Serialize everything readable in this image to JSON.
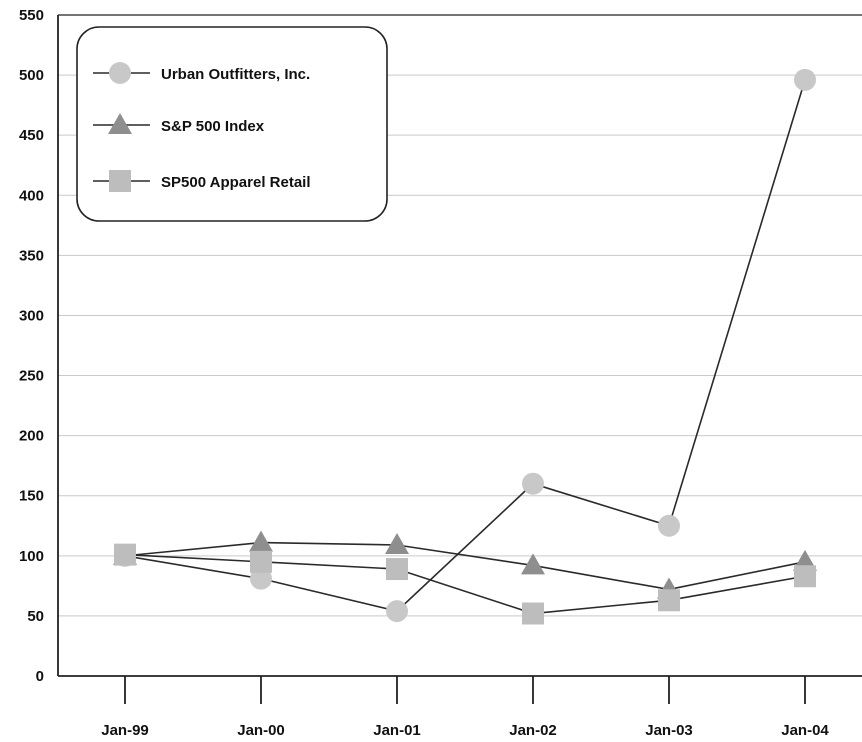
{
  "chart_data": {
    "type": "line",
    "title": "",
    "xlabel": "",
    "ylabel": "",
    "categories": [
      "Jan-99",
      "Jan-00",
      "Jan-01",
      "Jan-02",
      "Jan-03",
      "Jan-04"
    ],
    "ylim": [
      0,
      550
    ],
    "yticks": [
      0,
      50,
      100,
      150,
      200,
      250,
      300,
      350,
      400,
      450,
      500,
      550
    ],
    "grid": true,
    "legend_position": "top-left",
    "series": [
      {
        "name": "Urban Outfitters, Inc.",
        "marker": "circle",
        "color": "#c8c8c8",
        "values": [
          100,
          81,
          54,
          160,
          125,
          496
        ]
      },
      {
        "name": "S&P 500 Index",
        "marker": "triangle",
        "color": "#8e8e8e",
        "values": [
          100,
          111,
          109,
          92,
          72,
          95
        ]
      },
      {
        "name": "SP500 Apparel Retail",
        "marker": "square",
        "color": "#bdbdbd",
        "values": [
          101,
          95,
          89,
          52,
          63,
          83
        ]
      }
    ]
  }
}
